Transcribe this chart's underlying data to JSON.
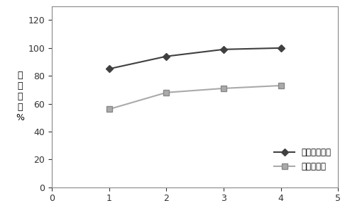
{
  "x": [
    1,
    2,
    3,
    4
  ],
  "series1_y": [
    85,
    94,
    99,
    100
  ],
  "series2_y": [
    56,
    68,
    71,
    73
  ],
  "series1_label": "硫化物降解率",
  "series2_label": "氨氮降解率",
  "series1_color": "#404040",
  "series2_color": "#aaaaaa",
  "ylabel": "降\n解\n效\n率\n%",
  "xlim": [
    0,
    5
  ],
  "ylim": [
    0,
    130
  ],
  "yticks": [
    0,
    20,
    40,
    60,
    80,
    100,
    120
  ],
  "xticks": [
    0,
    1,
    2,
    3,
    4,
    5
  ],
  "background_color": "#ffffff",
  "plot_bg_color": "#ffffff"
}
